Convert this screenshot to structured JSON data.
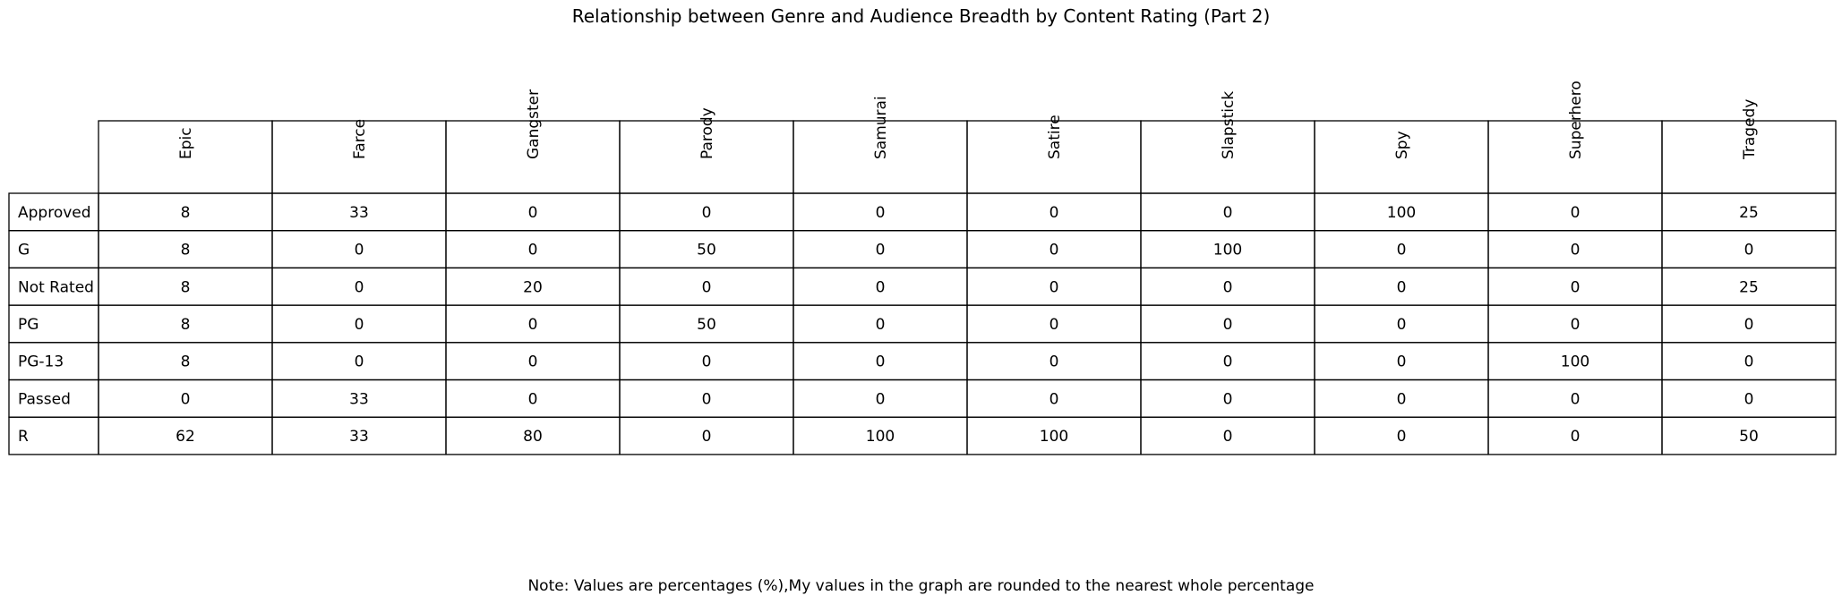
{
  "chart_data": {
    "type": "table",
    "title": "Relationship between Genre and Audience Breadth by Content Rating (Part 2)",
    "note": "Note: Values are percentages (%),My values in the graph are rounded to the nearest whole percentage",
    "columns": [
      "Epic",
      "Farce",
      "Gangster",
      "Parody",
      "Samurai",
      "Satire",
      "Slapstick",
      "Spy",
      "Superhero",
      "Tragedy"
    ],
    "rows": [
      {
        "label": "Approved",
        "values": [
          8,
          33,
          0,
          0,
          0,
          0,
          0,
          100,
          0,
          25
        ]
      },
      {
        "label": "G",
        "values": [
          8,
          0,
          0,
          50,
          0,
          0,
          100,
          0,
          0,
          0
        ]
      },
      {
        "label": "Not Rated",
        "values": [
          8,
          0,
          20,
          0,
          0,
          0,
          0,
          0,
          0,
          25
        ]
      },
      {
        "label": "PG",
        "values": [
          8,
          0,
          0,
          50,
          0,
          0,
          0,
          0,
          0,
          0
        ]
      },
      {
        "label": "PG-13",
        "values": [
          8,
          0,
          0,
          0,
          0,
          0,
          0,
          0,
          100,
          0
        ]
      },
      {
        "label": "Passed",
        "values": [
          0,
          33,
          0,
          0,
          0,
          0,
          0,
          0,
          0,
          0
        ]
      },
      {
        "label": "R",
        "values": [
          62,
          33,
          80,
          0,
          100,
          100,
          0,
          0,
          0,
          50
        ]
      }
    ]
  }
}
